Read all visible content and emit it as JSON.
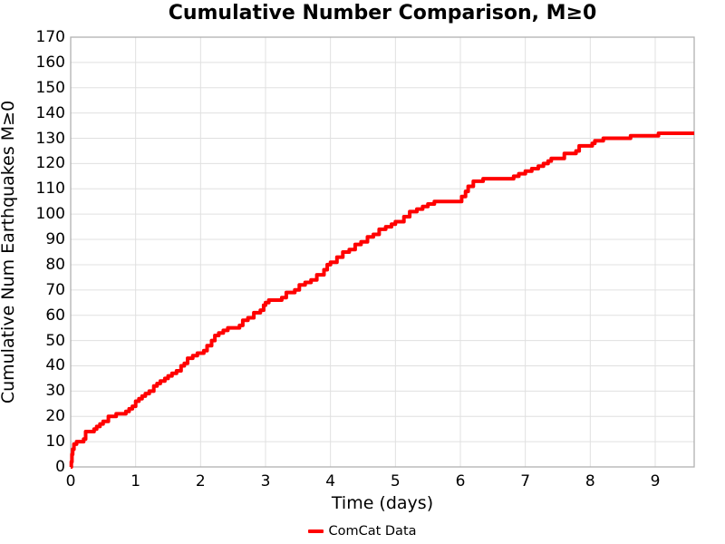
{
  "chart_data": {
    "type": "line",
    "style": "step-after",
    "title": "Cumulative Number Comparison, M≥0",
    "xlabel": "Time (days)",
    "ylabel": "Cumulative Num Earthquakes M≥0",
    "xlim": [
      0,
      9.6
    ],
    "ylim": [
      0,
      170
    ],
    "x_ticks": [
      0,
      1,
      2,
      3,
      4,
      5,
      6,
      7,
      8,
      9
    ],
    "y_ticks": [
      0,
      10,
      20,
      30,
      40,
      50,
      60,
      70,
      80,
      90,
      100,
      110,
      120,
      130,
      140,
      150,
      160,
      170
    ],
    "grid": true,
    "legend_position": "bottom-center",
    "legend": {
      "label": "ComCat Data"
    },
    "colors": {
      "line": "#ff0000",
      "grid": "#e0e0e0",
      "spine": "#b0b0b0",
      "text": "#000000",
      "background": "#ffffff"
    },
    "series": [
      {
        "name": "ComCat Data",
        "color": "#ff0000",
        "line_width": 4,
        "points": [
          [
            0.0,
            0
          ],
          [
            0.01,
            2
          ],
          [
            0.02,
            5
          ],
          [
            0.03,
            7
          ],
          [
            0.05,
            9
          ],
          [
            0.09,
            10
          ],
          [
            0.15,
            10
          ],
          [
            0.2,
            11
          ],
          [
            0.23,
            14
          ],
          [
            0.33,
            14
          ],
          [
            0.36,
            15
          ],
          [
            0.4,
            16
          ],
          [
            0.45,
            17
          ],
          [
            0.5,
            18
          ],
          [
            0.58,
            20
          ],
          [
            0.65,
            20
          ],
          [
            0.7,
            21
          ],
          [
            0.8,
            21
          ],
          [
            0.85,
            22
          ],
          [
            0.9,
            23
          ],
          [
            0.95,
            24
          ],
          [
            1.0,
            26
          ],
          [
            1.05,
            27
          ],
          [
            1.1,
            28
          ],
          [
            1.15,
            29
          ],
          [
            1.21,
            30
          ],
          [
            1.28,
            32
          ],
          [
            1.33,
            33
          ],
          [
            1.38,
            34
          ],
          [
            1.45,
            35
          ],
          [
            1.5,
            36
          ],
          [
            1.56,
            37
          ],
          [
            1.63,
            38
          ],
          [
            1.7,
            40
          ],
          [
            1.75,
            41
          ],
          [
            1.8,
            43
          ],
          [
            1.88,
            44
          ],
          [
            1.95,
            45
          ],
          [
            2.05,
            46
          ],
          [
            2.1,
            48
          ],
          [
            2.17,
            50
          ],
          [
            2.22,
            52
          ],
          [
            2.28,
            53
          ],
          [
            2.35,
            54
          ],
          [
            2.42,
            55
          ],
          [
            2.55,
            55
          ],
          [
            2.6,
            56
          ],
          [
            2.65,
            58
          ],
          [
            2.73,
            59
          ],
          [
            2.82,
            61
          ],
          [
            2.92,
            62
          ],
          [
            2.97,
            64
          ],
          [
            3.0,
            65
          ],
          [
            3.05,
            66
          ],
          [
            3.2,
            66
          ],
          [
            3.25,
            67
          ],
          [
            3.32,
            69
          ],
          [
            3.45,
            70
          ],
          [
            3.52,
            72
          ],
          [
            3.61,
            73
          ],
          [
            3.7,
            74
          ],
          [
            3.79,
            76
          ],
          [
            3.9,
            78
          ],
          [
            3.95,
            80
          ],
          [
            4.0,
            81
          ],
          [
            4.1,
            83
          ],
          [
            4.19,
            85
          ],
          [
            4.29,
            86
          ],
          [
            4.38,
            88
          ],
          [
            4.47,
            89
          ],
          [
            4.57,
            91
          ],
          [
            4.66,
            92
          ],
          [
            4.75,
            94
          ],
          [
            4.85,
            95
          ],
          [
            4.94,
            96
          ],
          [
            5.0,
            97
          ],
          [
            5.13,
            99
          ],
          [
            5.22,
            101
          ],
          [
            5.33,
            102
          ],
          [
            5.42,
            103
          ],
          [
            5.5,
            104
          ],
          [
            5.6,
            105
          ],
          [
            5.98,
            105
          ],
          [
            6.02,
            107
          ],
          [
            6.08,
            109
          ],
          [
            6.12,
            111
          ],
          [
            6.2,
            113
          ],
          [
            6.35,
            114
          ],
          [
            6.78,
            114
          ],
          [
            6.82,
            115
          ],
          [
            6.9,
            116
          ],
          [
            7.0,
            117
          ],
          [
            7.1,
            118
          ],
          [
            7.2,
            119
          ],
          [
            7.28,
            120
          ],
          [
            7.35,
            121
          ],
          [
            7.4,
            122
          ],
          [
            7.55,
            122
          ],
          [
            7.6,
            124
          ],
          [
            7.78,
            125
          ],
          [
            7.83,
            127
          ],
          [
            8.03,
            128
          ],
          [
            8.07,
            129
          ],
          [
            8.2,
            130
          ],
          [
            8.55,
            130
          ],
          [
            8.62,
            131
          ],
          [
            9.0,
            131
          ],
          [
            9.05,
            132
          ],
          [
            9.6,
            132
          ]
        ]
      }
    ]
  }
}
